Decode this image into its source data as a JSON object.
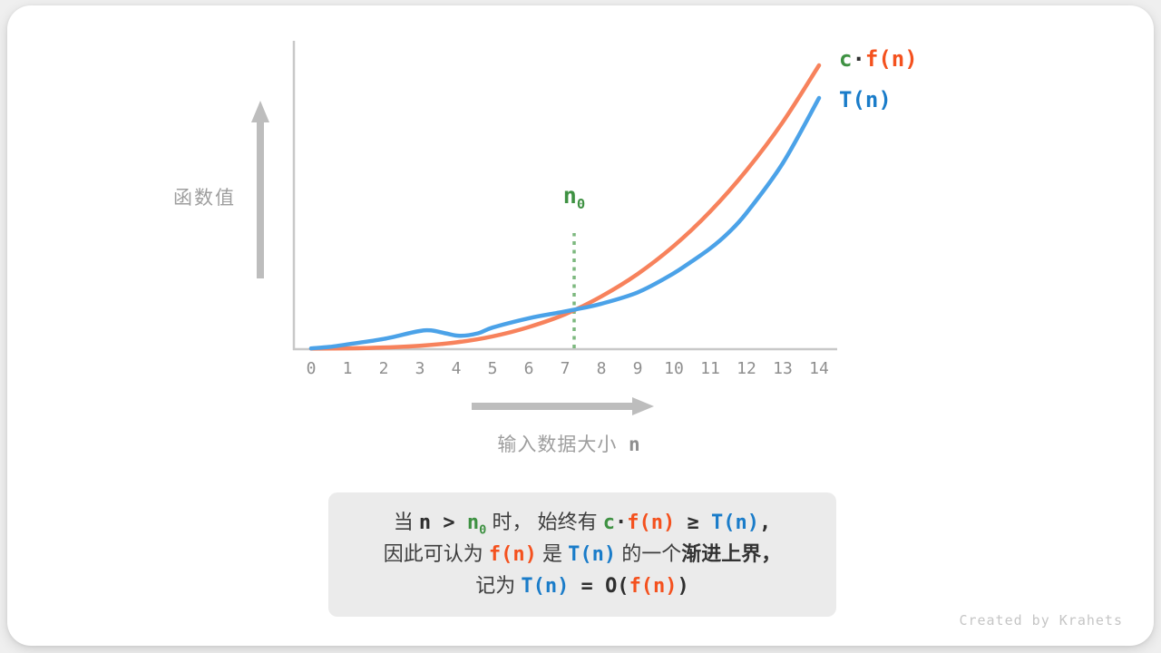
{
  "accent_colors": {
    "curve_orange": "#f7825c",
    "curve_blue": "#4ba2e8",
    "text_orange": "#f4511e",
    "text_blue": "#1a7cc9",
    "text_green": "#3e9142",
    "dotted_green": "#7db87f",
    "axis_gray": "#c8c8c8",
    "arrow_gray": "#bdbdbd"
  },
  "chart": {
    "y_axis_label": "函数值",
    "x_axis_label": "输入数据大小",
    "x_axis_var": "n"
  },
  "chart_data": {
    "type": "line",
    "title": "",
    "xlabel": "输入数据大小 n",
    "ylabel": "函数值",
    "x_range": [
      0,
      14
    ],
    "x_ticks": [
      "0",
      "1",
      "2",
      "3",
      "4",
      "5",
      "6",
      "7",
      "8",
      "9",
      "10",
      "11",
      "12",
      "13",
      "14"
    ],
    "grid": false,
    "legend_position": "top-right",
    "annotation": {
      "label": "n",
      "sub": "0",
      "x": 7.25,
      "style": "green dotted vertical line"
    },
    "series": [
      {
        "name": "c·f(n)",
        "color": "#f7825c",
        "points": [
          [
            0,
            0.2
          ],
          [
            1,
            0.3
          ],
          [
            2,
            0.6
          ],
          [
            3,
            1.2
          ],
          [
            4,
            2.4
          ],
          [
            5,
            4.5
          ],
          [
            6,
            7.8
          ],
          [
            7,
            12.3
          ],
          [
            8,
            18.6
          ],
          [
            9,
            26.5
          ],
          [
            10,
            36.4
          ],
          [
            11,
            48.5
          ],
          [
            12,
            63
          ],
          [
            13,
            80
          ],
          [
            14,
            100
          ]
        ]
      },
      {
        "name": "T(n)",
        "color": "#4ba2e8",
        "points": [
          [
            0,
            0.3
          ],
          [
            0.5,
            0.8
          ],
          [
            1,
            1.7
          ],
          [
            2,
            3.6
          ],
          [
            2.9,
            6.2
          ],
          [
            3.3,
            6.6
          ],
          [
            3.7,
            5.6
          ],
          [
            4.1,
            4.7
          ],
          [
            4.6,
            5.6
          ],
          [
            5,
            7.6
          ],
          [
            6,
            10.9
          ],
          [
            6.7,
            12.6
          ],
          [
            7.25,
            13.9
          ],
          [
            8,
            16
          ],
          [
            9,
            20
          ],
          [
            9.9,
            26
          ],
          [
            10.5,
            31
          ],
          [
            11,
            35.5
          ],
          [
            11.5,
            41
          ],
          [
            12,
            48
          ],
          [
            13,
            65.5
          ],
          [
            14,
            88.5
          ]
        ]
      }
    ],
    "note": "T(n) is above c·f(n) before n0; c·f(n) ≥ T(n) for all n > n0 ≈ 7.25"
  },
  "annotation_n0": [
    {
      "t": "n",
      "s": "green",
      "sub": "0"
    }
  ],
  "legend": {
    "cfn": [
      {
        "t": "c",
        "s": "green"
      },
      {
        "t": "·",
        "s": "mono"
      },
      {
        "t": "f(n)",
        "s": "orange"
      }
    ],
    "tn": [
      {
        "t": "T(n)",
        "s": "blue"
      }
    ]
  },
  "caption": {
    "lines": [
      [
        {
          "t": "当 ",
          "s": "cn"
        },
        {
          "t": "n",
          "s": "mono"
        },
        {
          "t": " > ",
          "s": "mono"
        },
        {
          "t": "n",
          "s": "green",
          "sub": "0"
        },
        {
          "t": " 时，",
          "s": "cn"
        },
        {
          "t": " 始终有 ",
          "s": "cn"
        },
        {
          "t": "c",
          "s": "green"
        },
        {
          "t": "·",
          "s": "mono"
        },
        {
          "t": "f(n)",
          "s": "orange"
        },
        {
          "t": " ≥ ",
          "s": "mono"
        },
        {
          "t": "T(n)",
          "s": "blue"
        },
        {
          "t": ",",
          "s": "mono"
        }
      ],
      [
        {
          "t": "因此可认为 ",
          "s": "cn"
        },
        {
          "t": "f(n)",
          "s": "orange"
        },
        {
          "t": " 是 ",
          "s": "cn"
        },
        {
          "t": "T(n)",
          "s": "blue"
        },
        {
          "t": " 的一个",
          "s": "cn"
        },
        {
          "t": "渐进上界",
          "s": "cnb"
        },
        {
          "t": "，",
          "s": "cnb"
        }
      ],
      [
        {
          "t": "记为 ",
          "s": "cn"
        },
        {
          "t": "T(n)",
          "s": "blue"
        },
        {
          "t": " = ",
          "s": "mono"
        },
        {
          "t": "O(",
          "s": "mono"
        },
        {
          "t": "f(n)",
          "s": "orange"
        },
        {
          "t": ")",
          "s": "mono"
        }
      ]
    ]
  },
  "footer": {
    "credit": "Created by Krahets"
  }
}
